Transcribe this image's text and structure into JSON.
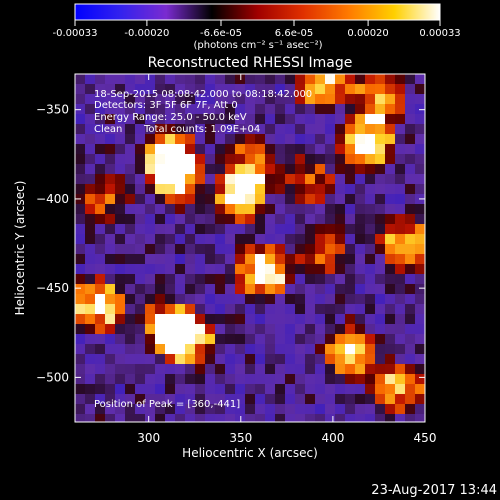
{
  "colorbar": {
    "ticks": [
      "-0.00033",
      "-0.00020",
      "-6.6e-05",
      "6.6e-05",
      "0.00020",
      "0.00033"
    ],
    "values": [
      -0.00033,
      -0.0002,
      -6.6e-05,
      6.6e-05,
      0.0002,
      0.00033
    ],
    "range": [
      -0.00033,
      0.00033
    ],
    "units": "(photons cm⁻² s⁻¹ asec⁻²)",
    "colors": [
      "#0000ff",
      "#3322ee",
      "#7a2bd0",
      "#000000",
      "#a00000",
      "#e03000",
      "#ff7a00",
      "#ffd000",
      "#ffffff"
    ]
  },
  "chart_data": {
    "type": "heatmap",
    "title": "Reconstructed RHESSI Image",
    "xlabel": "Heliocentric X (arcsec)",
    "ylabel": "Heliocentric Y (arcsec)",
    "xlim": [
      260,
      450
    ],
    "ylim": [
      -525,
      -330
    ],
    "xticks": [
      300,
      350,
      400,
      450
    ],
    "yticks": [
      -350,
      -400,
      -450,
      -500
    ],
    "xtick_labels": [
      "300",
      "350",
      "400",
      "450"
    ],
    "ytick_labels": [
      "-350",
      "-400",
      "-450",
      "-500"
    ],
    "info": {
      "time": "18-Sep-2015 08:08:42.000 to 08:18:42.000",
      "detectors": "Detectors: 3F 5F 6F 7F, Att 0",
      "energy": "Energy Range: 25.0 - 50.0 keV",
      "method": "Clean",
      "counts": "Total counts: 1.09E+04"
    },
    "peak_label": "Position of Peak = [360,-441]",
    "peak": [
      360,
      -441
    ],
    "blobs": [
      {
        "x": 315,
        "y": -388,
        "v": 1.0
      },
      {
        "x": 312,
        "y": -375,
        "v": 0.75
      },
      {
        "x": 320,
        "y": -478,
        "v": 1.0
      },
      {
        "x": 310,
        "y": -470,
        "v": 0.8
      },
      {
        "x": 273,
        "y": -460,
        "v": 0.95
      },
      {
        "x": 350,
        "y": -398,
        "v": 0.9
      },
      {
        "x": 355,
        "y": -380,
        "v": 0.6
      },
      {
        "x": 362,
        "y": -441,
        "v": 1.0
      },
      {
        "x": 395,
        "y": -335,
        "v": 0.85
      },
      {
        "x": 418,
        "y": -368,
        "v": 0.95
      },
      {
        "x": 425,
        "y": -345,
        "v": 0.7
      },
      {
        "x": 410,
        "y": -485,
        "v": 0.85
      },
      {
        "x": 440,
        "y": -425,
        "v": 0.8
      },
      {
        "x": 395,
        "y": -430,
        "v": 0.5
      },
      {
        "x": 275,
        "y": -400,
        "v": 0.55
      },
      {
        "x": 435,
        "y": -505,
        "v": 0.7
      },
      {
        "x": 385,
        "y": -390,
        "v": 0.55
      }
    ]
  },
  "footer": {
    "timestamp": "23-Aug-2017 13:44"
  }
}
